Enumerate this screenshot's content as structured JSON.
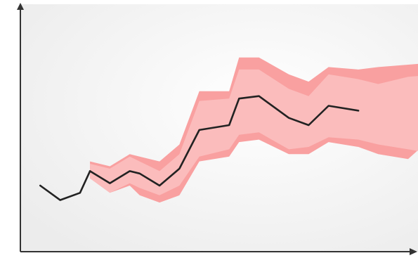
{
  "chart_data": {
    "type": "area",
    "title": "",
    "xlabel": "",
    "ylabel": "",
    "axis_ticks": "none",
    "grid": false,
    "legend": "none",
    "xlim": [
      0,
      20
    ],
    "ylim": [
      0,
      100
    ],
    "series": [
      {
        "role": "history",
        "x": [
          1,
          2,
          3,
          3.5
        ],
        "values": [
          25,
          19,
          22,
          31
        ]
      },
      {
        "role": "forecast",
        "x": [
          3.5,
          4.5,
          5.5,
          6.0,
          7.0,
          8.0,
          9.0,
          10.5,
          11.0,
          12.0,
          13.5,
          14.5,
          15.5,
          17.0,
          18.0,
          19.5,
          21.0
        ],
        "mean": [
          31,
          26,
          31,
          30,
          25,
          32,
          48,
          50,
          61,
          62,
          53,
          50,
          58,
          56,
          null,
          null,
          null
        ],
        "inner_lower": [
          28,
          22,
          26,
          24,
          21,
          25,
          37,
          40,
          46,
          47,
          40,
          41,
          45,
          44,
          42,
          40,
          38
        ],
        "inner_upper": [
          34,
          32,
          37,
          35,
          31,
          38,
          60,
          61,
          73,
          73,
          65,
          62,
          71,
          69,
          67,
          70,
          71
        ],
        "outer_lower": [
          28,
          22,
          25,
          21,
          18,
          21,
          35,
          37,
          43,
          44,
          38,
          38,
          43,
          41,
          38,
          36,
          47
        ],
        "outer_upper": [
          35,
          33,
          38,
          37,
          35,
          42,
          64,
          64,
          78,
          78,
          71,
          68,
          74,
          73,
          74,
          75,
          76
        ]
      }
    ],
    "colors": {
      "background_top": "#fdfdfd",
      "background_edge": "#eeeeee",
      "axis": "#333333",
      "band_outer": "#f9a0a0",
      "band_inner": "#fbbcbc",
      "line": "#222222"
    }
  }
}
